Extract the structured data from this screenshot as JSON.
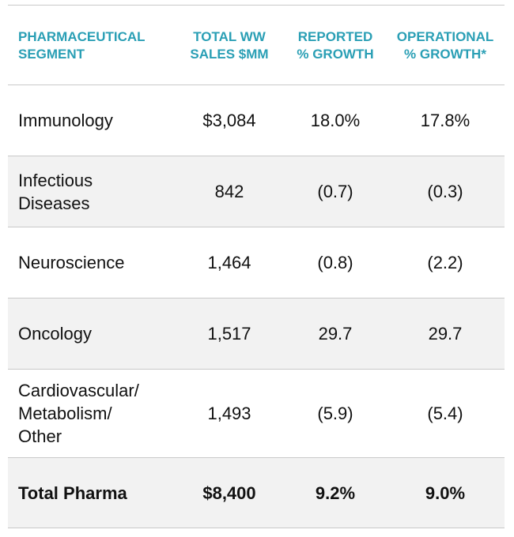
{
  "headers": {
    "segment": "PHARMACEUTICAL\nSEGMENT",
    "sales": "TOTAL WW\nSALES $MM",
    "reported": "REPORTED\n% GROWTH",
    "operational": "OPERATIONAL\n% GROWTH*"
  },
  "rows": [
    {
      "segment": "Immunology",
      "sales": "$3,084",
      "reported": "18.0%",
      "operational": "17.8%"
    },
    {
      "segment": "Infectious\nDiseases",
      "sales": "842",
      "reported": "(0.7)",
      "operational": "(0.3)"
    },
    {
      "segment": "Neuroscience",
      "sales": "1,464",
      "reported": "(0.8)",
      "operational": "(2.2)"
    },
    {
      "segment": "Oncology",
      "sales": "1,517",
      "reported": "29.7",
      "operational": "29.7"
    },
    {
      "segment": "Cardiovascular/\nMetabolism/\nOther",
      "sales": "1,493",
      "reported": "(5.9)",
      "operational": "(5.4)"
    }
  ],
  "total": {
    "segment": "Total Pharma",
    "sales": "$8,400",
    "reported": "9.2%",
    "operational": "9.0%"
  },
  "colors": {
    "header_text": "#2a9fb5",
    "row_shade": "#f2f2f2",
    "rule": "#c9c9c9"
  }
}
